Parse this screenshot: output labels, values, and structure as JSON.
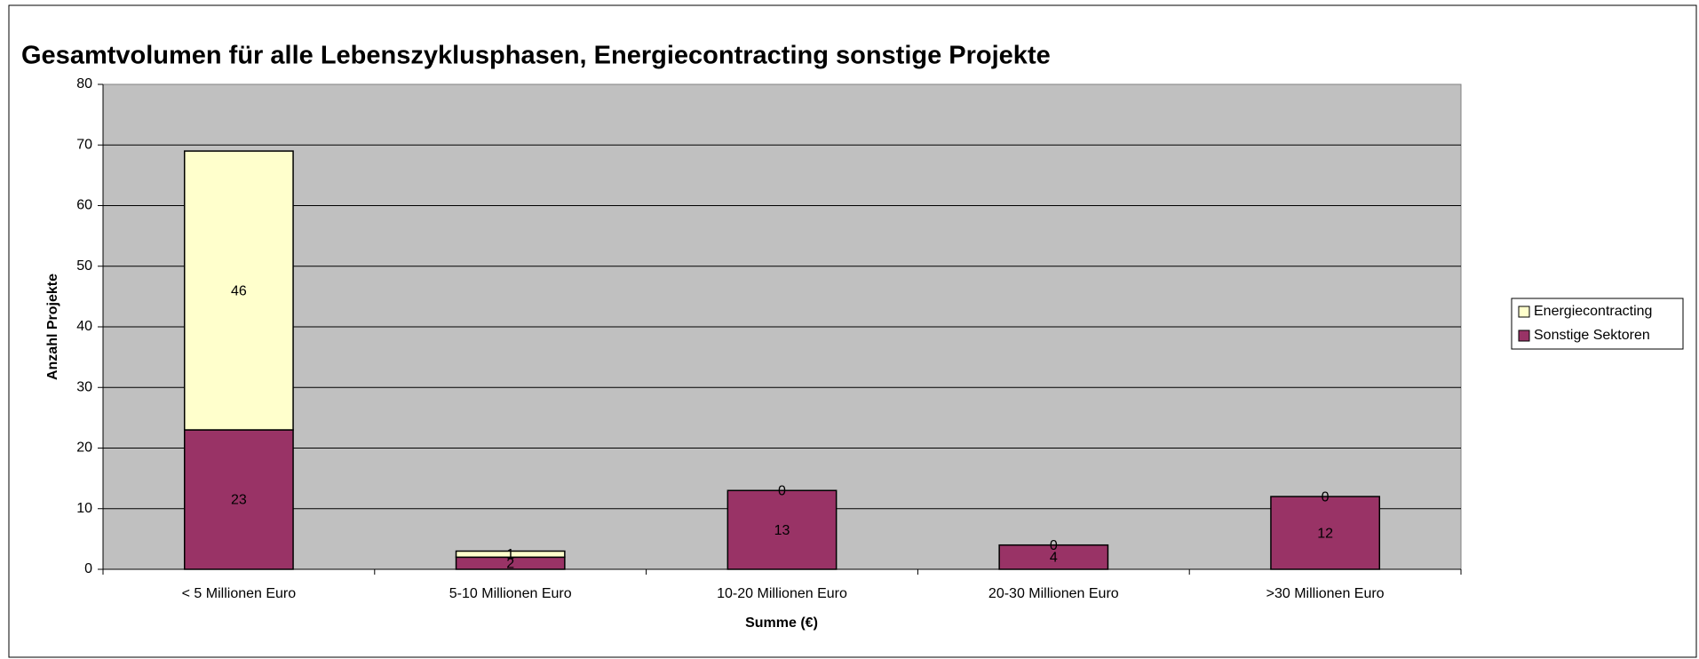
{
  "chart_data": {
    "type": "stacked_bar",
    "title": "Gesamtvolumen für alle Lebenszyklusphasen, Energiecontracting sonstige Projekte",
    "xlabel": "Summe  (€)",
    "ylabel": "Anzahl Projekte",
    "categories": [
      "< 5 Millionen Euro",
      "5-10 Millionen Euro",
      "10-20 Millionen Euro",
      "20-30 Millionen Euro",
      ">30 Millionen Euro"
    ],
    "series": [
      {
        "name": "Sonstige Sektoren",
        "color": "#993366",
        "values": [
          23,
          2,
          13,
          4,
          12
        ]
      },
      {
        "name": "Energiecontracting",
        "color": "#ffffcc",
        "values": [
          46,
          1,
          0,
          0,
          0
        ]
      }
    ],
    "ylim": [
      0,
      80
    ],
    "yticks": [
      0,
      10,
      20,
      30,
      40,
      50,
      60,
      70,
      80
    ],
    "grid": true,
    "legend": "right"
  }
}
